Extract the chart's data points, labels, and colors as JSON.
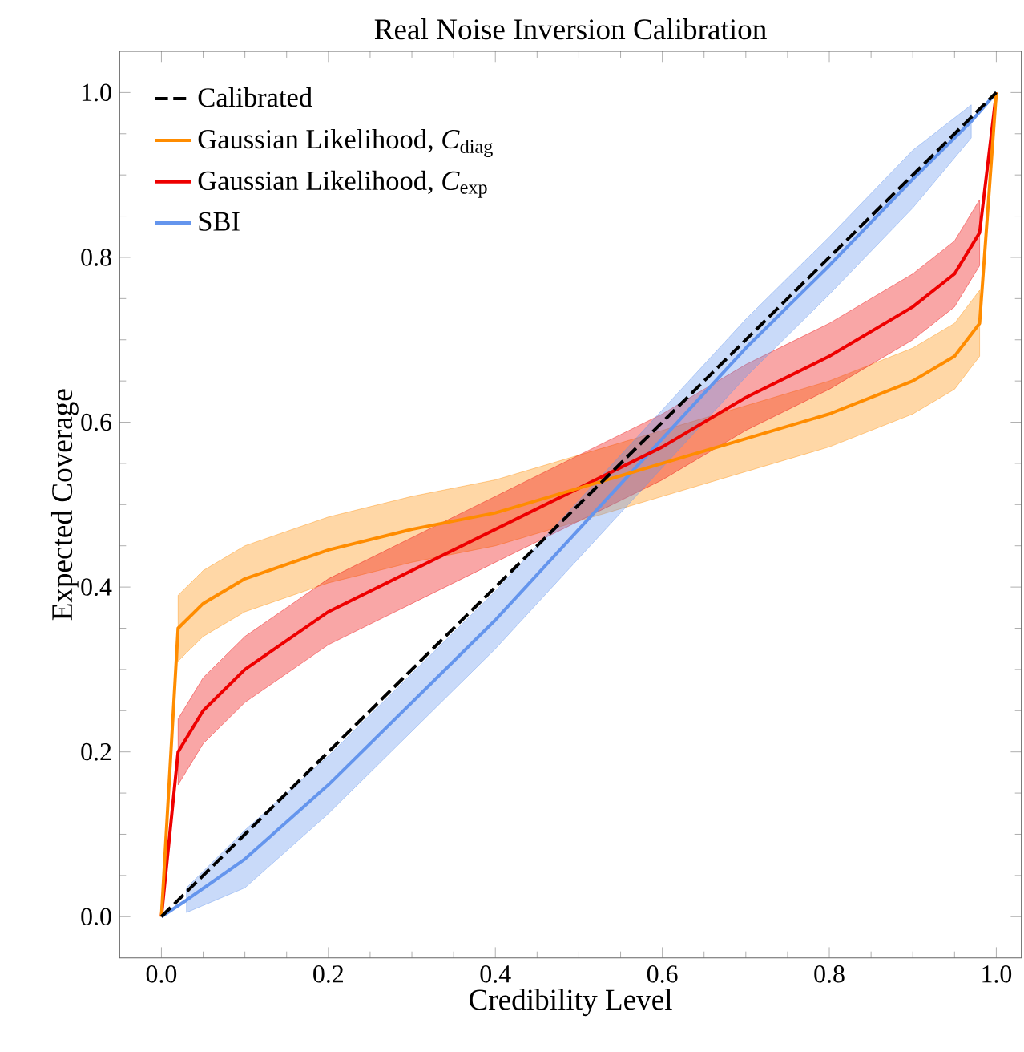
{
  "chart_data": {
    "type": "line",
    "title": "Real Noise Inversion Calibration",
    "xlabel": "Credibility Level",
    "ylabel": "Expected Coverage",
    "xlim": [
      -0.05,
      1.03
    ],
    "ylim": [
      -0.05,
      1.05
    ],
    "xticks": [
      {
        "value": 0,
        "label": "0.0"
      },
      {
        "value": 0.2,
        "label": "0.2"
      },
      {
        "value": 0.4,
        "label": "0.4"
      },
      {
        "value": 0.6,
        "label": "0.6"
      },
      {
        "value": 0.8,
        "label": "0.8"
      },
      {
        "value": 1,
        "label": "1.0"
      }
    ],
    "yticks": [
      {
        "value": 0,
        "label": "0.0"
      },
      {
        "value": 0.2,
        "label": "0.2"
      },
      {
        "value": 0.4,
        "label": "0.4"
      },
      {
        "value": 0.6,
        "label": "0.6"
      },
      {
        "value": 0.8,
        "label": "0.8"
      },
      {
        "value": 1,
        "label": "1.0"
      }
    ],
    "legend": "top left",
    "grid": false,
    "series": [
      {
        "name": "Calibrated",
        "color": "#000000",
        "line_style": "dashed",
        "x": [
          0,
          1
        ],
        "values": [
          0,
          1
        ]
      },
      {
        "name": "Gaussian Likelihood, *C*$_{diag}$",
        "color": "#ff8c00",
        "line_style": "solid",
        "x": [
          0,
          0.02,
          0.05,
          0.1,
          0.2,
          0.3,
          0.4,
          0.5,
          0.6,
          0.7,
          0.8,
          0.9,
          0.95,
          0.98,
          1
        ],
        "values": [
          0,
          0.35,
          0.38,
          0.41,
          0.445,
          0.47,
          0.49,
          0.52,
          0.55,
          0.58,
          0.61,
          0.65,
          0.68,
          0.72,
          1
        ],
        "lower": [
          null,
          0.31,
          0.34,
          0.37,
          0.405,
          0.43,
          0.45,
          0.48,
          0.51,
          0.54,
          0.57,
          0.61,
          0.64,
          0.68,
          null
        ],
        "upper": [
          null,
          0.39,
          0.42,
          0.45,
          0.485,
          0.51,
          0.53,
          0.56,
          0.59,
          0.62,
          0.65,
          0.69,
          0.72,
          0.76,
          null
        ]
      },
      {
        "name": "Gaussian Likelihood, *C*$_{exp}$",
        "color": "#ee0000",
        "line_style": "solid",
        "x": [
          0,
          0.02,
          0.05,
          0.1,
          0.2,
          0.3,
          0.4,
          0.5,
          0.6,
          0.7,
          0.8,
          0.9,
          0.95,
          0.98,
          1
        ],
        "values": [
          0,
          0.2,
          0.25,
          0.3,
          0.37,
          0.42,
          0.47,
          0.52,
          0.57,
          0.63,
          0.68,
          0.74,
          0.78,
          0.83,
          1
        ],
        "lower": [
          null,
          0.16,
          0.21,
          0.26,
          0.33,
          0.38,
          0.43,
          0.48,
          0.53,
          0.59,
          0.64,
          0.7,
          0.74,
          0.79,
          null
        ],
        "upper": [
          null,
          0.24,
          0.29,
          0.34,
          0.41,
          0.46,
          0.51,
          0.56,
          0.61,
          0.67,
          0.72,
          0.78,
          0.82,
          0.87,
          null
        ]
      },
      {
        "name": "SBI",
        "color": "#6495ed",
        "line_style": "solid",
        "x": [
          0,
          0.03,
          0.1,
          0.2,
          0.3,
          0.4,
          0.5,
          0.6,
          0.7,
          0.8,
          0.9,
          0.97,
          1
        ],
        "values": [
          0,
          0.02,
          0.07,
          0.16,
          0.26,
          0.36,
          0.47,
          0.58,
          0.69,
          0.79,
          0.895,
          0.965,
          1
        ],
        "lower": [
          null,
          0.005,
          0.035,
          0.125,
          0.225,
          0.325,
          0.435,
          0.545,
          0.655,
          0.755,
          0.86,
          0.945,
          null
        ],
        "upper": [
          null,
          0.035,
          0.105,
          0.195,
          0.295,
          0.395,
          0.505,
          0.615,
          0.725,
          0.825,
          0.93,
          0.985,
          null
        ]
      }
    ]
  }
}
